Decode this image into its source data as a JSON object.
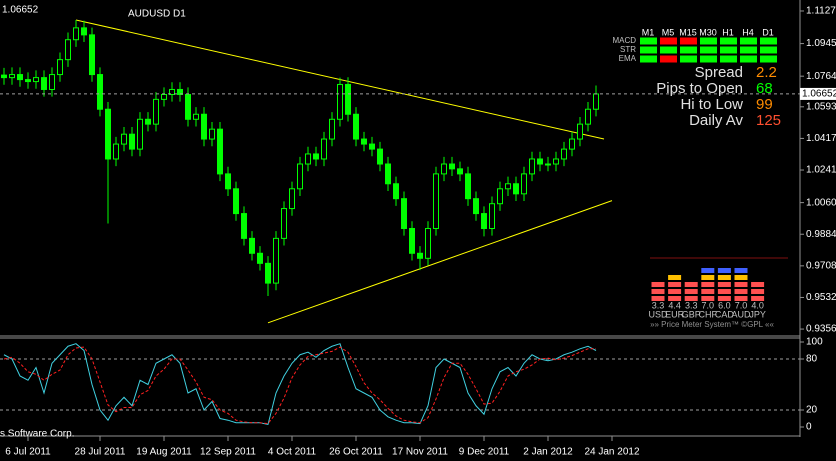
{
  "chart_data": [
    {
      "type": "candlestick",
      "title": "AUDUSD D1",
      "last_price": 1.06652,
      "color": "#00ff00",
      "categories": [
        null,
        null,
        null,
        "6 Jul 2011",
        null,
        null,
        null,
        null,
        null,
        null,
        null,
        null,
        "28 Jul 2011",
        null,
        null,
        null,
        null,
        null,
        null,
        null,
        "19 Aug 2011",
        null,
        null,
        null,
        null,
        null,
        null,
        null,
        "12 Sep 2011",
        null,
        null,
        null,
        null,
        null,
        null,
        null,
        "4 Oct 2011",
        null,
        null,
        null,
        null,
        null,
        null,
        null,
        "26 Oct 2011",
        null,
        null,
        null,
        null,
        null,
        null,
        null,
        "17 Nov 2011",
        null,
        null,
        null,
        null,
        null,
        null,
        null,
        "9 Dec 2011",
        null,
        null,
        null,
        null,
        null,
        null,
        null,
        "2 Jan 2012",
        null,
        null,
        null,
        null,
        null,
        null,
        null,
        "24 Jan 2012"
      ],
      "open": [
        1.077,
        1.0756,
        1.0773,
        1.0745,
        1.0734,
        1.0756,
        1.069,
        1.0773,
        1.0856,
        1.0967,
        1.1033,
        1.0994,
        1.0773,
        1.058,
        1.0303,
        1.0386,
        1.0441,
        1.0358,
        1.0524,
        1.0497,
        1.0635,
        1.0662,
        1.069,
        1.0662,
        1.0524,
        1.0552,
        1.0414,
        1.0469,
        1.022,
        1.0137,
        0.9999,
        0.9861,
        0.9778,
        0.9722,
        0.9612,
        0.9861,
        1.0027,
        1.0137,
        1.0275,
        1.0331,
        1.0303,
        1.0414,
        1.0524,
        1.0718,
        1.0552,
        1.0414,
        1.0386,
        1.0358,
        1.0275,
        1.0165,
        1.0082,
        0.9916,
        0.9778,
        0.975,
        0.9916,
        1.022,
        1.0275,
        1.0248,
        1.022,
        1.0082,
        0.9999,
        0.9916,
        1.0054,
        1.0137,
        1.0165,
        1.0109,
        1.022,
        1.0303,
        1.0275,
        1.0275,
        1.0303,
        1.0358,
        1.0414,
        1.0497,
        1.058,
        null,
        null
      ],
      "high": [
        1.081,
        1.0813,
        1.0813,
        1.0785,
        1.0796,
        1.0796,
        1.0813,
        1.0896,
        1.1007,
        1.1077,
        1.1073,
        1.1034,
        1.0813,
        1.062,
        1.0426,
        1.0481,
        1.0481,
        1.0564,
        1.0564,
        1.0675,
        1.0702,
        1.073,
        1.073,
        1.0702,
        1.0592,
        1.0592,
        1.0509,
        1.0509,
        1.026,
        1.0177,
        1.0039,
        0.9901,
        0.9818,
        0.9762,
        0.9901,
        1.0067,
        1.0177,
        1.0315,
        1.0371,
        1.0371,
        1.0454,
        1.0564,
        1.0756,
        1.0758,
        1.0592,
        1.0454,
        1.0426,
        1.0398,
        1.0315,
        1.0205,
        1.0122,
        0.9956,
        0.9818,
        0.9956,
        1.026,
        1.0315,
        1.0315,
        1.0288,
        1.026,
        1.0122,
        1.0039,
        1.0094,
        1.0177,
        1.0205,
        1.0205,
        1.026,
        1.0343,
        1.0343,
        1.0315,
        1.0343,
        1.0398,
        1.0454,
        1.0537,
        1.062,
        1.0712,
        null,
        null
      ],
      "low": [
        1.0716,
        1.0716,
        1.0705,
        1.0694,
        1.0694,
        1.065,
        1.065,
        1.0733,
        1.0816,
        1.0927,
        1.0954,
        1.0733,
        1.054,
        0.9944,
        1.0263,
        1.0346,
        1.0318,
        1.0318,
        1.0457,
        1.0457,
        1.0595,
        1.0622,
        1.0622,
        1.0484,
        1.0484,
        1.0374,
        1.0374,
        1.018,
        1.0097,
        0.9959,
        0.9821,
        0.9738,
        0.9682,
        0.954,
        0.9572,
        0.9821,
        0.9987,
        1.0097,
        1.0235,
        1.0263,
        1.0263,
        1.0374,
        1.0484,
        1.0512,
        1.0374,
        1.0346,
        1.0318,
        1.0235,
        1.0125,
        1.0042,
        0.9876,
        0.9738,
        0.9684,
        0.971,
        0.9876,
        1.018,
        1.0208,
        1.018,
        1.0042,
        0.9959,
        0.9872,
        0.9876,
        1.0014,
        1.0097,
        1.0069,
        1.0069,
        1.018,
        1.0235,
        1.0235,
        1.0235,
        1.0263,
        1.0318,
        1.0374,
        1.0457,
        1.054,
        null,
        null
      ],
      "close": [
        1.0756,
        1.0773,
        1.0745,
        1.0734,
        1.0756,
        1.069,
        1.0773,
        1.0856,
        1.0967,
        1.1033,
        1.0994,
        1.0773,
        1.058,
        1.0303,
        1.0386,
        1.0441,
        1.0358,
        1.0524,
        1.0497,
        1.0635,
        1.0662,
        1.069,
        1.0662,
        1.0524,
        1.0552,
        1.0414,
        1.0469,
        1.022,
        1.0137,
        0.9999,
        0.9861,
        0.9778,
        0.9722,
        0.9612,
        0.9861,
        1.0027,
        1.0137,
        1.0275,
        1.0331,
        1.0303,
        1.0414,
        1.0524,
        1.0718,
        1.0552,
        1.0414,
        1.0386,
        1.0358,
        1.0275,
        1.0165,
        1.0082,
        0.9916,
        0.9778,
        0.975,
        0.9916,
        1.022,
        1.0275,
        1.0248,
        1.022,
        1.0082,
        0.9999,
        0.9916,
        1.0054,
        1.0137,
        1.0165,
        1.0109,
        1.022,
        1.0303,
        1.0275,
        1.0275,
        1.0303,
        1.0358,
        1.0414,
        1.0497,
        1.058,
        1.0665,
        null,
        null
      ],
      "trendlines": {
        "color": "#ffff00",
        "lines": [
          {
            "x": [
              9,
              75
            ],
            "y": [
              1.1077,
              1.0414
            ]
          },
          {
            "x": [
              33,
              76
            ],
            "y": [
              0.9391,
              1.0071
            ]
          }
        ]
      },
      "ylim": [
        0.9323,
        1.1177
      ],
      "yticks": [
        {
          "value": 1.1127,
          "label": "1.11270"
        },
        1.09455,
        {
          "value": 1.0764,
          "label": "1.07640"
        },
        1.05935,
        1.04175,
        1.02415,
        {
          "value": 1.006,
          "label": "1.00600"
        },
        {
          "value": 0.9884,
          "label": "0.98840"
        },
        {
          "value": 0.9708,
          "label": "0.97080"
        },
        {
          "value": 0.9532,
          "label": "0.95320"
        },
        {
          "value": 0.9356,
          "label": "0.93560"
        }
      ]
    },
    {
      "type": "line",
      "ylim": [
        -9.4,
        104.7
      ],
      "yticks": [
        0,
        20,
        80,
        100
      ],
      "levels": [
        20,
        80
      ],
      "series": [
        {
          "color": "#40d0e0",
          "values": [
            85,
            80,
            60,
            55,
            70,
            40,
            75,
            85,
            95,
            98,
            90,
            50,
            20,
            8,
            25,
            35,
            25,
            55,
            50,
            75,
            80,
            85,
            75,
            40,
            45,
            20,
            30,
            10,
            8,
            5,
            5,
            5,
            5,
            3,
            40,
            60,
            75,
            85,
            88,
            82,
            90,
            95,
            98,
            70,
            45,
            40,
            35,
            20,
            12,
            8,
            5,
            5,
            4,
            25,
            70,
            80,
            75,
            70,
            40,
            25,
            15,
            45,
            65,
            70,
            60,
            75,
            85,
            80,
            78,
            80,
            85,
            88,
            92,
            95,
            90,
            null,
            null
          ]
        },
        {
          "color": "#ff2020",
          "dash": true,
          "values": [
            80,
            82,
            75,
            65,
            62,
            55,
            62,
            67,
            85,
            93,
            94,
            80,
            53,
            26,
            18,
            23,
            23,
            38,
            43,
            60,
            68,
            80,
            80,
            67,
            53,
            35,
            32,
            20,
            16,
            8,
            6,
            5,
            5,
            4,
            16,
            34,
            58,
            73,
            83,
            85,
            87,
            89,
            94,
            88,
            71,
            52,
            40,
            32,
            22,
            13,
            8,
            6,
            5,
            11,
            33,
            58,
            75,
            75,
            62,
            45,
            27,
            28,
            42,
            60,
            65,
            68,
            73,
            80,
            81,
            79,
            81,
            84,
            88,
            92,
            92,
            null,
            null
          ]
        }
      ]
    }
  ],
  "panel": {
    "timeframes": [
      "M1",
      "M5",
      "M15",
      "M30",
      "H1",
      "H4",
      "D1"
    ],
    "signals": [
      {
        "name": "MACD",
        "colors": [
          "#00ff00",
          "#ff0000",
          "#ff0000",
          "#00ff00",
          "#00ff00",
          "#00ff00",
          "#00ff00"
        ]
      },
      {
        "name": "STR",
        "colors": [
          "#00ff00",
          "#00ff00",
          "#00ff00",
          "#00ff00",
          "#00ff00",
          "#00ff00",
          "#00ff00"
        ]
      },
      {
        "name": "EMA",
        "colors": [
          "#00ff00",
          "#ff0000",
          "#00ff00",
          "#00ff00",
          "#00ff00",
          "#00ff00",
          "#00ff00"
        ]
      }
    ],
    "stats": [
      {
        "label": "Spread",
        "value": 2.2,
        "color": "#ff8c00"
      },
      {
        "label": "Pips to Open",
        "value": 68,
        "color": "#00ff00"
      },
      {
        "label": "Hi to Low",
        "value": 99,
        "color": "#ff8c00"
      },
      {
        "label": "Daily Av",
        "value": 125,
        "color": "#ff5030"
      }
    ],
    "meter": {
      "currencies": [
        "USD",
        "EUR",
        "GBP",
        "CHF",
        "CAD",
        "AUD",
        "JPY"
      ],
      "values": [
        3.3,
        4.4,
        3.3,
        7,
        6,
        7,
        4
      ],
      "value_labels": [
        "3.3",
        "4.4",
        "3.3",
        "7.0",
        "6.0",
        "7.0",
        "4.0"
      ],
      "caption": "»» Price Meter System™ ©GPL ««"
    },
    "footer": "s Software Corp."
  }
}
